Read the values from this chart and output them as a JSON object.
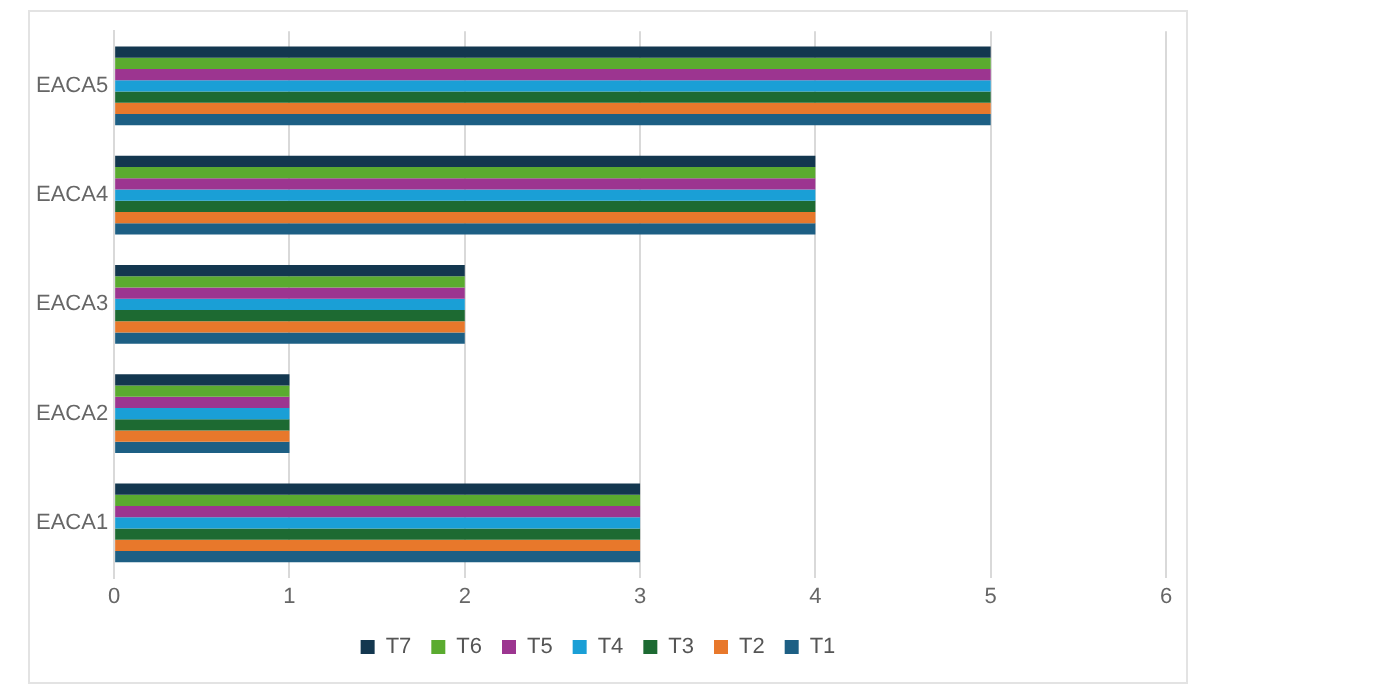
{
  "chart_data": {
    "type": "bar",
    "orientation": "horizontal",
    "categories": [
      "EACA5",
      "EACA4",
      "EACA3",
      "EACA2",
      "EACA1"
    ],
    "series": [
      {
        "name": "T7",
        "color": "#13374f",
        "values": [
          5,
          4,
          2,
          1,
          3
        ]
      },
      {
        "name": "T6",
        "color": "#5aab2f",
        "values": [
          5,
          4,
          2,
          1,
          3
        ]
      },
      {
        "name": "T5",
        "color": "#9c3590",
        "values": [
          5,
          4,
          2,
          1,
          3
        ]
      },
      {
        "name": "T4",
        "color": "#1a9fd6",
        "values": [
          5,
          4,
          2,
          1,
          3
        ]
      },
      {
        "name": "T3",
        "color": "#1d6a32",
        "values": [
          5,
          4,
          2,
          1,
          3
        ]
      },
      {
        "name": "T2",
        "color": "#e8782b",
        "values": [
          5,
          4,
          2,
          1,
          3
        ]
      },
      {
        "name": "T1",
        "color": "#1d5f84",
        "values": [
          5,
          4,
          2,
          1,
          3
        ]
      }
    ],
    "xlim": [
      0,
      6
    ],
    "xticks": [
      0,
      1,
      2,
      3,
      4,
      5,
      6
    ],
    "grid": "x",
    "legend": "bottom"
  }
}
